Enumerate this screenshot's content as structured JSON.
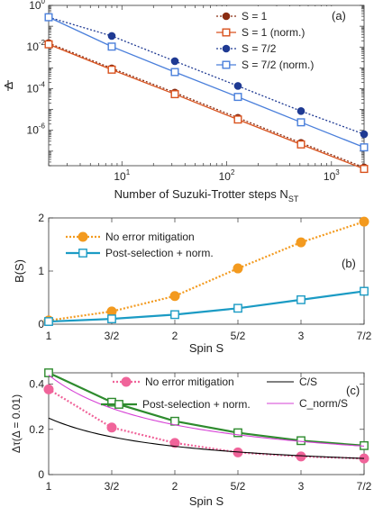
{
  "chart_data": [
    {
      "type": "line",
      "panel_label": "(a)",
      "xscale": "log",
      "yscale": "log",
      "xlabel": "Number of Suzuki-Trotter steps N",
      "xlabel_sub": "ST",
      "ylabel": "Δ",
      "xlim": [
        2,
        2048
      ],
      "ylim": [
        2e-08,
        1
      ],
      "x_ticks": [
        {
          "value": 10,
          "label": "10",
          "sup": "1"
        },
        {
          "value": 100,
          "label": "10",
          "sup": "2"
        },
        {
          "value": 1000,
          "label": "10",
          "sup": "3"
        }
      ],
      "y_ticks": [
        {
          "value": 1,
          "label": "10",
          "sup": "0"
        },
        {
          "value": 0.01,
          "label": "10",
          "sup": "-2"
        },
        {
          "value": 0.0001,
          "label": "10",
          "sup": "-4"
        },
        {
          "value": 1e-06,
          "label": "10",
          "sup": "-6"
        }
      ],
      "legend_position": "top-right",
      "x": [
        2,
        8,
        32,
        128,
        512,
        2048
      ],
      "series": [
        {
          "name": "S = 1",
          "color": "#8b2d12",
          "marker": "filled-circle",
          "line": "dotted",
          "values": [
            0.0155,
            0.00095,
            6.48e-05,
            4e-06,
            2.5e-07,
            1.65e-08
          ]
        },
        {
          "name": "S = 1 (norm.)",
          "color": "#d9521d",
          "marker": "open-square",
          "line": "solid",
          "values": [
            0.0135,
            0.00082,
            5.45e-05,
            3.3e-06,
            2.1e-07,
            1.4e-08
          ]
        },
        {
          "name": "S = 7/2",
          "color": "#1f3a93",
          "marker": "filled-circle",
          "line": "dotted",
          "values": [
            0.27,
            0.034,
            0.0021,
            0.000135,
            8.4e-06,
            6.5e-07
          ]
        },
        {
          "name": "S = 7/2 (norm.)",
          "color": "#4a7fdb",
          "marker": "open-square",
          "line": "solid",
          "values": [
            0.27,
            0.0105,
            0.00063,
            4.03e-05,
            2.43e-06,
            1.52e-07
          ]
        }
      ]
    },
    {
      "type": "line",
      "panel_label": "(b)",
      "xlabel": "Spin S",
      "ylabel": "B(S)",
      "ylim": [
        0,
        2
      ],
      "categories": [
        "1",
        "3/2",
        "2",
        "5/2",
        "3",
        "7/2"
      ],
      "y_ticks": [
        "0",
        "1",
        "2"
      ],
      "legend_position": "top-left",
      "series": [
        {
          "name": "No error mitigation",
          "color": "#f39a1f",
          "marker": "filled-circle",
          "line": "dotted",
          "values": [
            0.07,
            0.24,
            0.53,
            1.05,
            1.54,
            1.93
          ]
        },
        {
          "name": "Post-selection + norm.",
          "color": "#1b9bc4",
          "marker": "open-square",
          "line": "solid",
          "values": [
            0.05,
            0.1,
            0.18,
            0.3,
            0.46,
            0.62
          ]
        }
      ]
    },
    {
      "type": "line",
      "panel_label": "(c)",
      "xlabel": "Spin S",
      "ylabel": "Δτ(Δ = 0.01)",
      "ylim": [
        0,
        0.45
      ],
      "categories": [
        "1",
        "3/2",
        "2",
        "5/2",
        "3",
        "7/2"
      ],
      "y_ticks": [
        "0",
        "0.2",
        "0.4"
      ],
      "legend_position": "top",
      "series": [
        {
          "name": "No error mitigation",
          "color": "#f0649a",
          "marker": "filled-circle",
          "line": "dotted",
          "values": [
            0.377,
            0.208,
            0.14,
            0.098,
            0.08,
            0.071
          ]
        },
        {
          "name": "Post-selection + norm.",
          "color": "#2e8b2e",
          "marker": "open-square",
          "line": "solid",
          "values": [
            0.45,
            0.32,
            0.236,
            0.185,
            0.15,
            0.128
          ]
        },
        {
          "name": "C/S",
          "color": "#000000",
          "marker": "none",
          "line": "solid",
          "values": [
            0.25,
            0.1667,
            0.125,
            0.1,
            0.0833,
            0.0714
          ]
        },
        {
          "name": "C_norm/S",
          "color": "#d640d6",
          "marker": "none",
          "line": "solid",
          "values": [
            0.44,
            0.2933,
            0.22,
            0.176,
            0.1467,
            0.1257
          ]
        }
      ]
    }
  ]
}
